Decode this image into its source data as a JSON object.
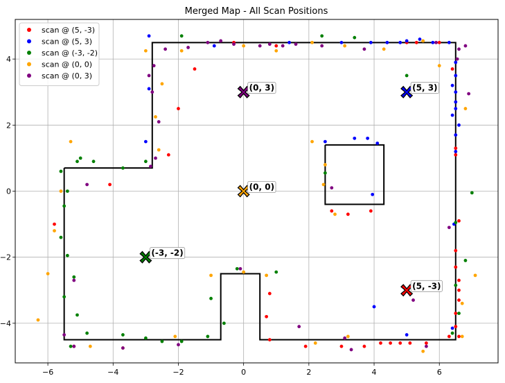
{
  "chart_data": {
    "type": "scatter",
    "title": "Merged Map - All Scan Positions",
    "xlabel": "",
    "ylabel": "",
    "xlim": [
      -7,
      7.8
    ],
    "ylim": [
      -5.2,
      5.2
    ],
    "xticks": [
      -6,
      -4,
      -2,
      0,
      2,
      4,
      6
    ],
    "yticks": [
      -4,
      -2,
      0,
      2,
      4
    ],
    "grid": true,
    "legend_position": "top-left",
    "walls": [
      [
        [
          -5.5,
          0.7
        ],
        [
          -2.8,
          0.7
        ],
        [
          -2.8,
          4.5
        ],
        [
          6.5,
          4.5
        ],
        [
          6.5,
          -4.5
        ],
        [
          0.5,
          -4.5
        ],
        [
          0.5,
          -2.5
        ],
        [
          -0.7,
          -2.5
        ],
        [
          -0.7,
          -4.5
        ],
        [
          -5.5,
          -4.5
        ],
        [
          -5.5,
          0.7
        ]
      ],
      [
        [
          2.5,
          1.4
        ],
        [
          4.3,
          1.4
        ],
        [
          4.3,
          -0.4
        ],
        [
          2.5,
          -0.4
        ],
        [
          2.5,
          1.4
        ]
      ]
    ],
    "series": [
      {
        "name": "scan @ (5, -3)",
        "color": "#ff0000",
        "position": [
          5,
          -3
        ],
        "position_label": "(5, -3)",
        "points": [
          [
            -1.5,
            3.7
          ],
          [
            -2.0,
            2.5
          ],
          [
            -2.3,
            1.1
          ],
          [
            -4.1,
            0.2
          ],
          [
            -5.8,
            -1.0
          ],
          [
            3.2,
            -0.7
          ],
          [
            3.9,
            -0.6
          ],
          [
            2.7,
            -0.6
          ],
          [
            6.5,
            1.3
          ],
          [
            6.6,
            -0.9
          ],
          [
            6.5,
            -1.8
          ],
          [
            6.5,
            -2.3
          ],
          [
            6.6,
            -2.7
          ],
          [
            6.6,
            -3.0
          ],
          [
            6.6,
            -3.3
          ],
          [
            6.5,
            -3.7
          ],
          [
            6.5,
            -4.1
          ],
          [
            6.6,
            -4.4
          ],
          [
            0.8,
            -3.1
          ],
          [
            0.7,
            -3.8
          ],
          [
            0.8,
            -4.5
          ],
          [
            1.9,
            -4.7
          ],
          [
            3.0,
            -4.7
          ],
          [
            3.7,
            -4.7
          ],
          [
            4.2,
            -4.6
          ],
          [
            4.5,
            -4.6
          ],
          [
            4.8,
            -4.6
          ],
          [
            5.1,
            -4.6
          ],
          [
            5.6,
            -4.6
          ],
          [
            6.3,
            -4.4
          ],
          [
            -0.3,
            4.5
          ],
          [
            1.0,
            4.4
          ],
          [
            5.3,
            4.5
          ],
          [
            6.0,
            4.5
          ],
          [
            5.0,
            4.5
          ],
          [
            6.4,
            3.7
          ],
          [
            6.5,
            1.1
          ],
          [
            -5.2,
            -4.7
          ]
        ]
      },
      {
        "name": "scan @ (5, 3)",
        "color": "#0000ff",
        "position": [
          5,
          3
        ],
        "position_label": "(5, 3)",
        "points": [
          [
            -2.9,
            4.7
          ],
          [
            -2.9,
            3.1
          ],
          [
            -3.0,
            1.5
          ],
          [
            -0.9,
            4.4
          ],
          [
            1.4,
            4.5
          ],
          [
            3.0,
            4.5
          ],
          [
            3.9,
            4.5
          ],
          [
            4.4,
            4.5
          ],
          [
            4.8,
            4.5
          ],
          [
            5.0,
            4.55
          ],
          [
            5.4,
            4.6
          ],
          [
            5.8,
            4.5
          ],
          [
            6.3,
            4.5
          ],
          [
            6.5,
            3.9
          ],
          [
            6.5,
            3.5
          ],
          [
            6.4,
            3.2
          ],
          [
            6.5,
            3.0
          ],
          [
            6.5,
            2.7
          ],
          [
            6.5,
            2.5
          ],
          [
            6.4,
            2.3
          ],
          [
            6.6,
            2.0
          ],
          [
            6.5,
            1.7
          ],
          [
            6.5,
            1.2
          ],
          [
            2.5,
            1.5
          ],
          [
            3.4,
            1.6
          ],
          [
            3.8,
            1.6
          ],
          [
            4.1,
            1.45
          ],
          [
            3.95,
            -0.1
          ],
          [
            6.45,
            -1.0
          ],
          [
            4.0,
            -3.5
          ],
          [
            5.0,
            -4.35
          ],
          [
            6.4,
            -4.15
          ]
        ]
      },
      {
        "name": "scan @ (-3, -2)",
        "color": "#008000",
        "position": [
          -3,
          -2
        ],
        "position_label": "(-3, -2)",
        "points": [
          [
            -1.9,
            4.7
          ],
          [
            2.4,
            4.7
          ],
          [
            3.4,
            4.65
          ],
          [
            5.0,
            3.5
          ],
          [
            -5.0,
            1.0
          ],
          [
            -5.1,
            0.9
          ],
          [
            -4.6,
            0.9
          ],
          [
            -3.7,
            0.7
          ],
          [
            -3.0,
            0.9
          ],
          [
            -5.6,
            0.6
          ],
          [
            -5.4,
            0.0
          ],
          [
            -5.5,
            -0.45
          ],
          [
            -5.6,
            -1.4
          ],
          [
            -5.4,
            -1.95
          ],
          [
            -5.2,
            -2.6
          ],
          [
            -5.5,
            -3.2
          ],
          [
            -5.1,
            -3.75
          ],
          [
            -4.8,
            -4.3
          ],
          [
            -5.3,
            -4.7
          ],
          [
            -3.7,
            -4.35
          ],
          [
            -3.0,
            -4.45
          ],
          [
            -2.5,
            -4.55
          ],
          [
            -1.9,
            -4.55
          ],
          [
            -1.1,
            -4.4
          ],
          [
            -0.6,
            -4.0
          ],
          [
            -1.0,
            -3.25
          ],
          [
            -0.2,
            -2.35
          ],
          [
            1.0,
            -2.45
          ],
          [
            2.5,
            0.55
          ],
          [
            6.5,
            -0.95
          ],
          [
            7.0,
            -0.05
          ],
          [
            6.8,
            -2.1
          ],
          [
            6.5,
            -2.85
          ],
          [
            6.6,
            -3.7
          ],
          [
            6.4,
            -4.3
          ]
        ]
      },
      {
        "name": "scan @ (0, 0)",
        "color": "#ffa500",
        "position": [
          0,
          0
        ],
        "position_label": "(0, 0)",
        "points": [
          [
            -5.3,
            1.5
          ],
          [
            -5.6,
            0.0
          ],
          [
            -5.8,
            -1.2
          ],
          [
            -6.0,
            -2.5
          ],
          [
            -6.3,
            -3.9
          ],
          [
            -4.7,
            -4.7
          ],
          [
            -3.7,
            -4.75
          ],
          [
            -2.1,
            -4.4
          ],
          [
            -1.0,
            -2.55
          ],
          [
            0.7,
            -2.55
          ],
          [
            -3.0,
            4.25
          ],
          [
            -2.7,
            2.25
          ],
          [
            -2.6,
            1.25
          ],
          [
            -2.5,
            3.25
          ],
          [
            -1.9,
            4.25
          ],
          [
            0.0,
            4.4
          ],
          [
            1.0,
            4.25
          ],
          [
            2.1,
            4.5
          ],
          [
            3.1,
            4.4
          ],
          [
            4.3,
            4.3
          ],
          [
            5.5,
            4.55
          ],
          [
            6.0,
            3.8
          ],
          [
            6.8,
            2.5
          ],
          [
            2.1,
            1.5
          ],
          [
            2.5,
            0.8
          ],
          [
            2.45,
            0.2
          ],
          [
            2.8,
            -0.7
          ],
          [
            7.1,
            -2.55
          ],
          [
            6.7,
            -3.4
          ],
          [
            6.7,
            -4.4
          ],
          [
            5.5,
            -4.85
          ],
          [
            3.2,
            -4.4
          ],
          [
            2.2,
            -4.6
          ],
          [
            0.0,
            -2.45
          ]
        ]
      },
      {
        "name": "scan @ (0, 3)",
        "color": "#800080",
        "position": [
          0,
          3
        ],
        "position_label": "(0, 3)",
        "points": [
          [
            -2.9,
            3.5
          ],
          [
            -2.8,
            3.0
          ],
          [
            -2.75,
            3.8
          ],
          [
            -2.6,
            2.1
          ],
          [
            -2.7,
            1.0
          ],
          [
            -2.85,
            0.75
          ],
          [
            -2.4,
            4.3
          ],
          [
            -1.7,
            4.35
          ],
          [
            -1.1,
            4.5
          ],
          [
            -0.7,
            4.55
          ],
          [
            -0.3,
            4.45
          ],
          [
            0.5,
            4.4
          ],
          [
            0.8,
            4.45
          ],
          [
            1.2,
            4.4
          ],
          [
            1.6,
            4.45
          ],
          [
            2.4,
            4.4
          ],
          [
            3.7,
            4.3
          ],
          [
            5.9,
            4.5
          ],
          [
            6.55,
            4.0
          ],
          [
            6.6,
            4.3
          ],
          [
            6.8,
            4.4
          ],
          [
            6.9,
            2.95
          ],
          [
            2.7,
            0.1
          ],
          [
            6.3,
            -1.1
          ],
          [
            5.2,
            -3.3
          ],
          [
            5.6,
            -4.7
          ],
          [
            3.1,
            -4.45
          ],
          [
            3.3,
            -4.8
          ],
          [
            1.7,
            -4.1
          ],
          [
            -0.1,
            -2.35
          ],
          [
            -2.0,
            -4.65
          ],
          [
            -3.7,
            -4.75
          ],
          [
            -5.2,
            -4.7
          ],
          [
            -5.5,
            -4.35
          ],
          [
            -5.2,
            -2.7
          ],
          [
            -4.8,
            0.2
          ]
        ]
      }
    ]
  }
}
